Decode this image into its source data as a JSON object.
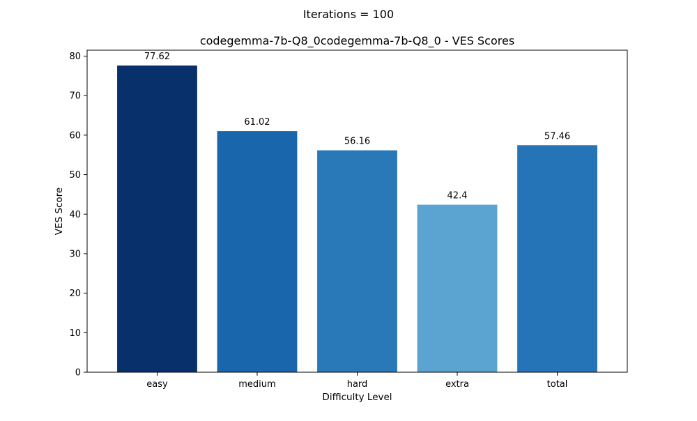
{
  "chart_data": {
    "type": "bar",
    "suptitle": "Iterations = 100",
    "title": "codegemma-7b-Q8_0codegemma-7b-Q8_0 - VES Scores",
    "xlabel": "Difficulty Level",
    "ylabel": "VES Score",
    "categories": [
      "easy",
      "medium",
      "hard",
      "extra",
      "total"
    ],
    "values": [
      77.62,
      61.02,
      56.16,
      42.4,
      57.46
    ],
    "value_labels": [
      "77.62",
      "61.02",
      "56.16",
      "42.4",
      "57.46"
    ],
    "colors": [
      "#08306b",
      "#1966ad",
      "#2979b9",
      "#5ba3d0",
      "#2474b7"
    ],
    "ylim": [
      0,
      81.5
    ],
    "yticks": [
      0,
      10,
      20,
      30,
      40,
      50,
      60,
      70,
      80
    ],
    "grid": false,
    "legend": "none"
  }
}
